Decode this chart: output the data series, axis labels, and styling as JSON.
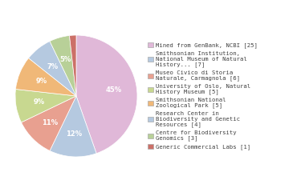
{
  "labels": [
    "Mined from GenBank, NCBI [25]",
    "Smithsonian Institution,\nNational Museum of Natural\nHistory... [7]",
    "Museo Civico di Storia\nNaturale, Carmagnola [6]",
    "University of Oslo, Natural\nHistory Museum [5]",
    "Smithsonian National\nZoological Park [5]",
    "Research Center in\nBiodiversity and Genetic\nResources [4]",
    "Centre for Biodiversity\nGenomics [3]",
    "Generic Commercial Labs [1]"
  ],
  "values": [
    25,
    7,
    6,
    5,
    5,
    4,
    3,
    1
  ],
  "colors": [
    "#e0b8d8",
    "#b5c9e0",
    "#e8a090",
    "#c8d890",
    "#f0b878",
    "#b5c9e0",
    "#b8d098",
    "#cc7068"
  ],
  "background_color": "#ffffff",
  "text_color": "#404040",
  "fontsize": 6.5
}
